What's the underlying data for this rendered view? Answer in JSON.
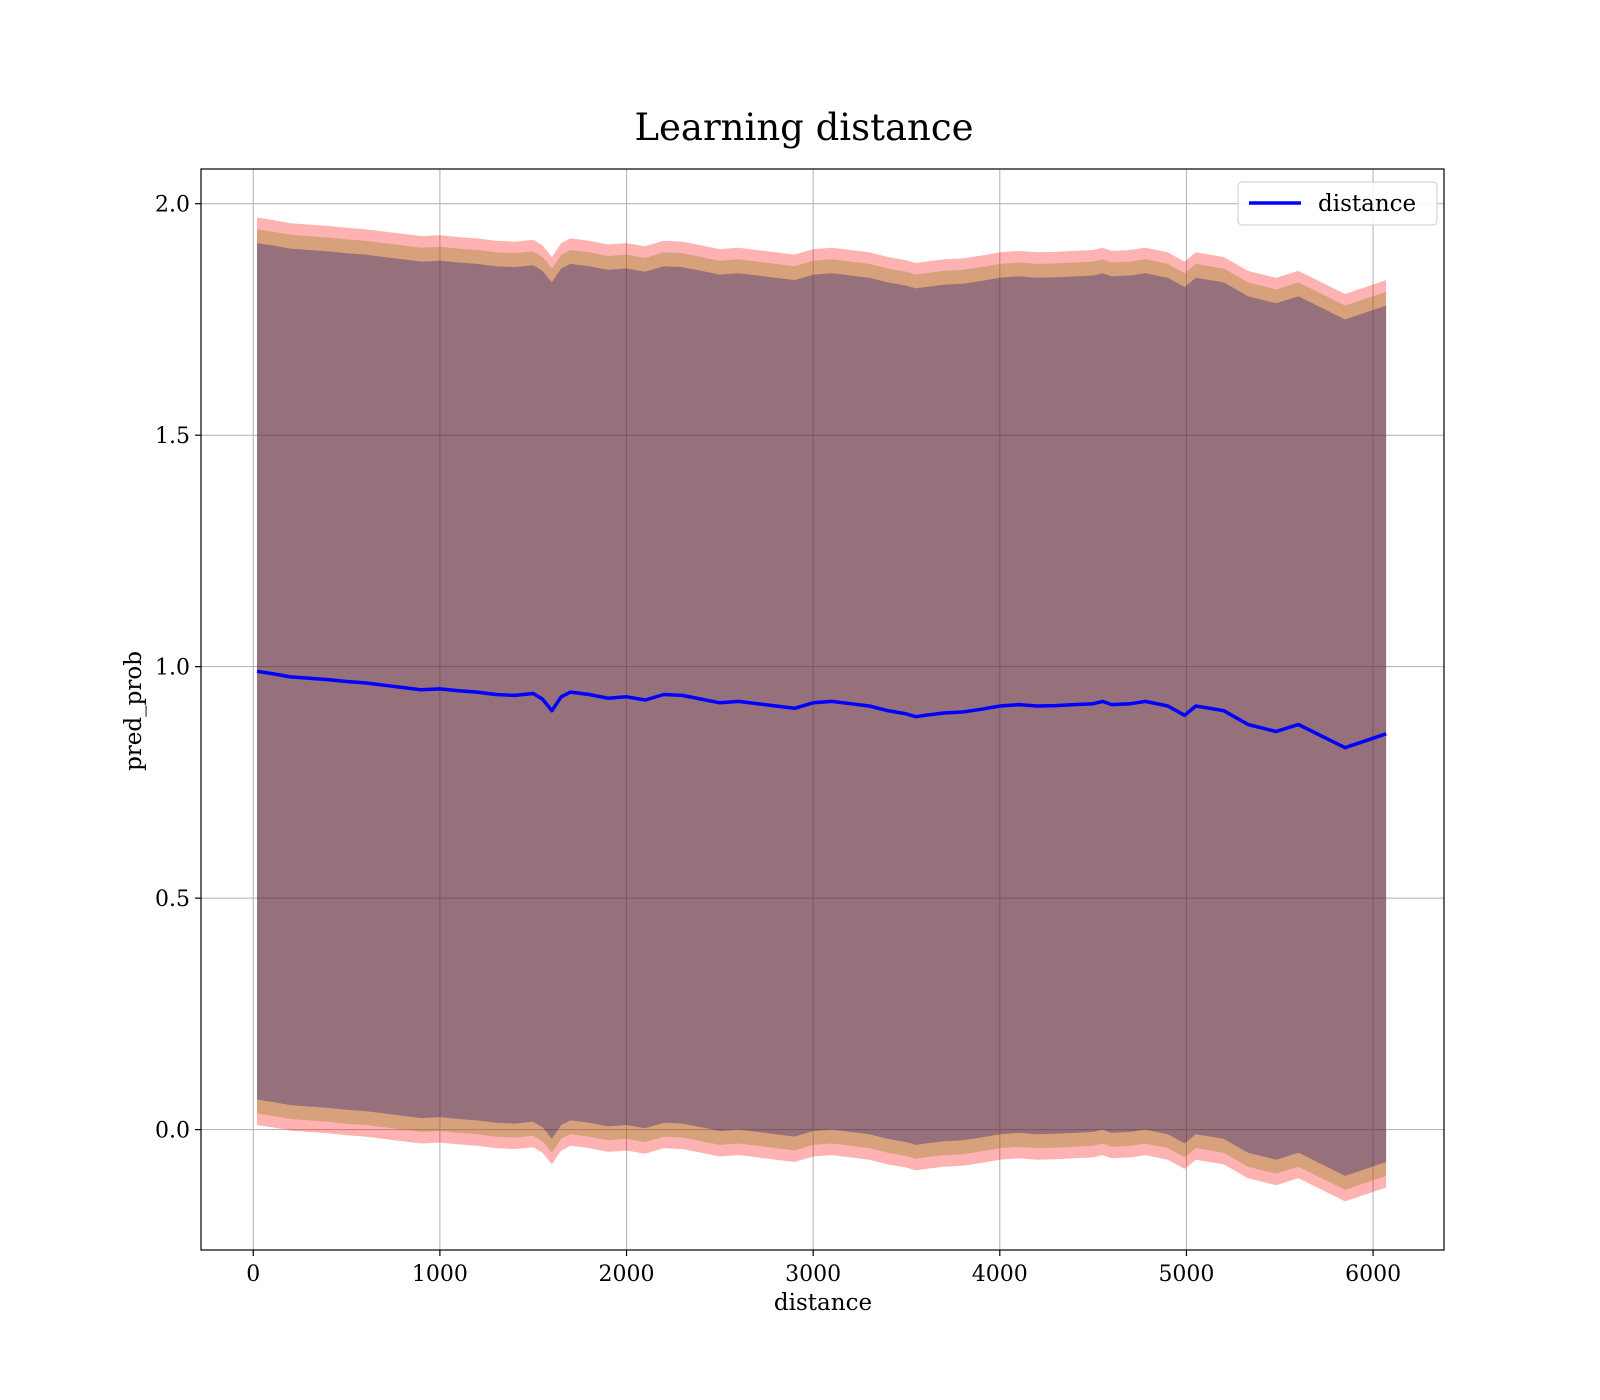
{
  "chart_data": {
    "type": "line",
    "title": "Learning distance",
    "xlabel": "distance",
    "ylabel": "pred_prob",
    "xlim": [
      -280,
      6380
    ],
    "ylim": [
      -0.26,
      2.075
    ],
    "xticks": [
      0,
      1000,
      2000,
      3000,
      4000,
      5000,
      6000
    ],
    "yticks": [
      0.0,
      0.5,
      1.0,
      1.5,
      2.0
    ],
    "xtick_labels": [
      "0",
      "1000",
      "2000",
      "3000",
      "4000",
      "5000",
      "6000"
    ],
    "ytick_labels": [
      "0.0",
      "0.5",
      "1.0",
      "1.5",
      "2.0"
    ],
    "grid": true,
    "legend": {
      "position": "top-right",
      "entries": [
        "distance"
      ]
    },
    "series": [
      {
        "name": "distance",
        "color": "#0000ff",
        "x": [
          20,
          100,
          200,
          300,
          400,
          500,
          600,
          700,
          800,
          900,
          1000,
          1100,
          1200,
          1300,
          1400,
          1500,
          1550,
          1600,
          1650,
          1700,
          1800,
          1900,
          2000,
          2100,
          2200,
          2300,
          2400,
          2500,
          2600,
          2700,
          2800,
          2900,
          3000,
          3100,
          3200,
          3300,
          3400,
          3500,
          3550,
          3600,
          3700,
          3800,
          3900,
          4000,
          4100,
          4200,
          4300,
          4400,
          4500,
          4550,
          4600,
          4700,
          4780,
          4900,
          4990,
          5050,
          5200,
          5330,
          5480,
          5600,
          5850,
          6070
        ],
        "y": [
          0.99,
          0.985,
          0.978,
          0.975,
          0.972,
          0.968,
          0.965,
          0.96,
          0.955,
          0.95,
          0.952,
          0.948,
          0.945,
          0.94,
          0.938,
          0.942,
          0.93,
          0.905,
          0.935,
          0.945,
          0.94,
          0.932,
          0.935,
          0.928,
          0.94,
          0.938,
          0.93,
          0.922,
          0.925,
          0.92,
          0.915,
          0.91,
          0.922,
          0.925,
          0.92,
          0.915,
          0.905,
          0.898,
          0.892,
          0.895,
          0.9,
          0.902,
          0.908,
          0.915,
          0.918,
          0.915,
          0.916,
          0.918,
          0.92,
          0.925,
          0.918,
          0.92,
          0.925,
          0.915,
          0.895,
          0.915,
          0.905,
          0.875,
          0.86,
          0.875,
          0.825,
          0.855
        ]
      }
    ],
    "bands": [
      {
        "color": "#ff0000",
        "opacity": 0.3,
        "offset": 0.98
      },
      {
        "color": "#7a7a00",
        "opacity": 0.3,
        "offset": 0.955
      },
      {
        "color": "#00007a",
        "opacity": 0.3,
        "offset": 0.925
      }
    ]
  }
}
